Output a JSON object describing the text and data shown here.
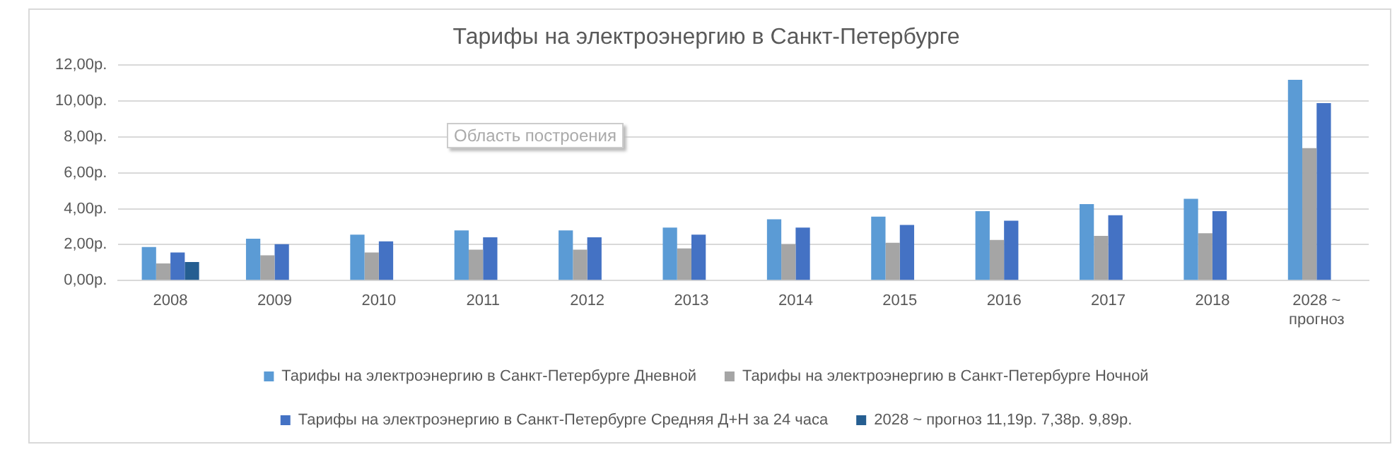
{
  "chart_data": {
    "type": "bar",
    "title": "Тарифы на электроэнергию в Санкт-Петербурге",
    "categories": [
      "2008",
      "2009",
      "2010",
      "2011",
      "2012",
      "2013",
      "2014",
      "2015",
      "2016",
      "2017",
      "2018",
      "2028 ~ прогноз"
    ],
    "series": [
      {
        "name": "Тарифы на электроэнергию в Санкт-Петербурге Дневной",
        "color": "#5b9bd5",
        "values": [
          1.87,
          2.33,
          2.56,
          2.79,
          2.79,
          2.95,
          3.41,
          3.56,
          3.87,
          4.26,
          4.56,
          11.19
        ]
      },
      {
        "name": "Тарифы на электроэнергию в Санкт-Петербурге Ночной",
        "color": "#a5a5a5",
        "values": [
          0.95,
          1.41,
          1.56,
          1.72,
          1.72,
          1.79,
          2.03,
          2.1,
          2.26,
          2.49,
          2.64,
          7.38
        ]
      },
      {
        "name": "Тарифы на электроэнергию в Санкт-Петербурге Средняя Д+Н за 24 часа",
        "color": "#4472c4",
        "values": [
          1.56,
          2.03,
          2.18,
          2.41,
          2.41,
          2.56,
          2.95,
          3.1,
          3.33,
          3.64,
          3.87,
          9.89
        ]
      },
      {
        "name": "2028 ~ прогноз 11,19р. 7,38р. 9,89р.",
        "color": "#255e91",
        "values": [
          1.03,
          null,
          null,
          null,
          null,
          null,
          null,
          null,
          null,
          null,
          null,
          null
        ]
      }
    ],
    "ylim": [
      0,
      12
    ],
    "yticks": [
      {
        "value": 0,
        "label": "0,00р."
      },
      {
        "value": 2,
        "label": "2,00р."
      },
      {
        "value": 4,
        "label": "4,00р."
      },
      {
        "value": 6,
        "label": "6,00р."
      },
      {
        "value": 8,
        "label": "8,00р."
      },
      {
        "value": 10,
        "label": "10,00р."
      },
      {
        "value": 12,
        "label": "12,00р."
      }
    ],
    "grid": "y",
    "legend": "bottom",
    "annotations": [
      "Область построения"
    ]
  }
}
